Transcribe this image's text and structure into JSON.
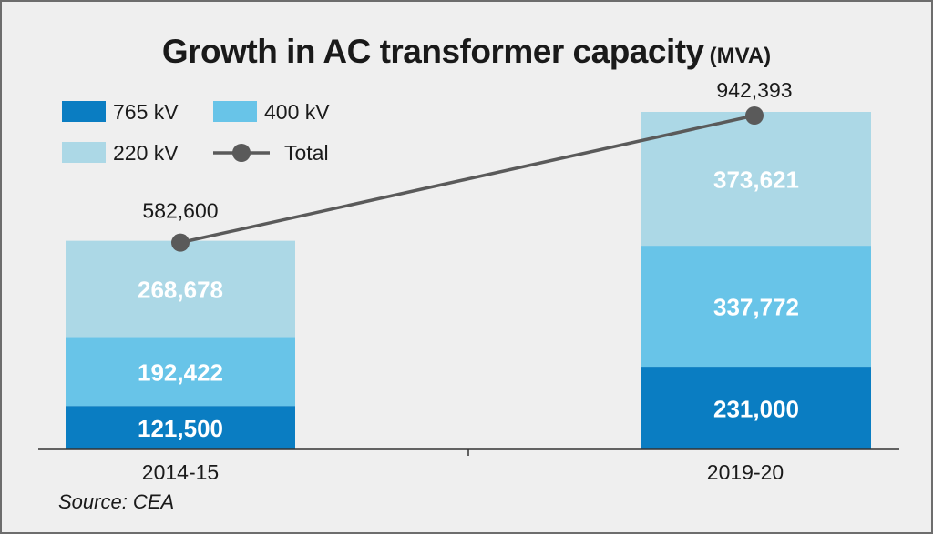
{
  "chart_data": {
    "type": "bar",
    "stacked": true,
    "title": "Growth in AC transformer capacity",
    "title_unit": "(MVA)",
    "categories": [
      "2014-15",
      "2019-20"
    ],
    "series": [
      {
        "name": "765 kV",
        "color": "#0a7dc2",
        "values": [
          121500,
          231000
        ]
      },
      {
        "name": "400 kV",
        "color": "#68c4e8",
        "values": [
          192422,
          337772
        ]
      },
      {
        "name": "220 kV",
        "color": "#acd8e6",
        "values": [
          268678,
          373621
        ]
      }
    ],
    "value_labels": [
      [
        "121,500",
        "231,000"
      ],
      [
        "192,422",
        "337,772"
      ],
      [
        "268,678",
        "373,621"
      ]
    ],
    "line_series": {
      "name": "Total",
      "color": "#5a5a5a",
      "values": [
        582600,
        942393
      ],
      "labels": [
        "582,600",
        "942,393"
      ]
    },
    "legend": {
      "placement": "top-left",
      "entries": [
        {
          "label": "765 kV",
          "color": "#0a7dc2",
          "kind": "box"
        },
        {
          "label": "400 kV",
          "color": "#68c4e8",
          "kind": "box"
        },
        {
          "label": "220 kV",
          "color": "#acd8e6",
          "kind": "box"
        },
        {
          "label": "Total",
          "color": "#5a5a5a",
          "kind": "line-marker"
        }
      ]
    },
    "ylim": [
      0,
      942393
    ],
    "grid": false,
    "source": "Source: CEA"
  }
}
